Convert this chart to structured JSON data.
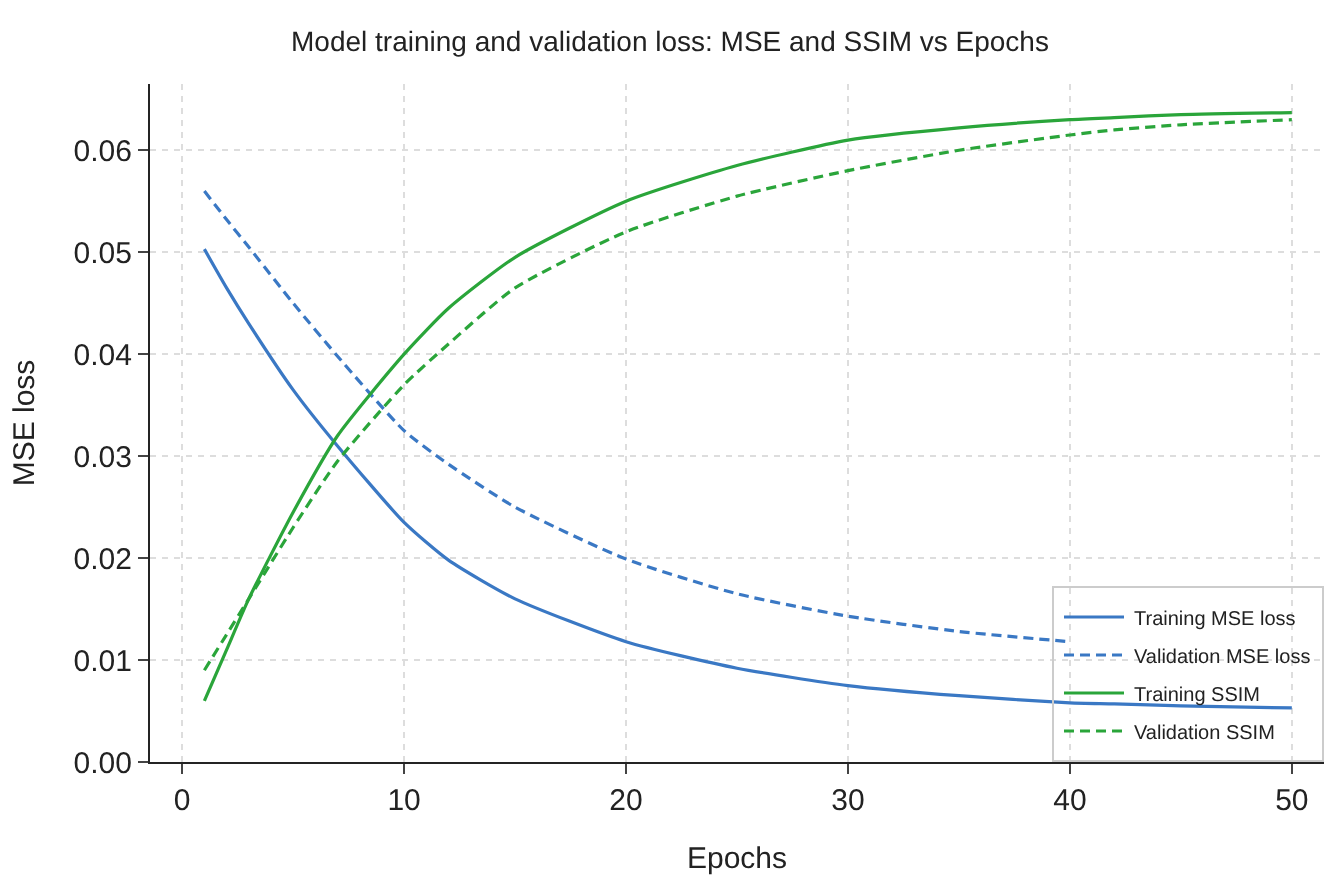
{
  "chart_data": {
    "type": "line",
    "title": "Model training and validation loss: MSE and SSIM vs Epochs",
    "xlabel": "Epochs",
    "ylabel": "MSE loss",
    "x": [
      1,
      2,
      3,
      5,
      7,
      10,
      12,
      15,
      20,
      25,
      30,
      35,
      40,
      42,
      45,
      50
    ],
    "series": [
      {
        "name": "Training MSE loss",
        "color": "#3a78c4",
        "line_style": "solid",
        "values": [
          0.0503,
          0.0465,
          0.043,
          0.0365,
          0.031,
          0.0235,
          0.0198,
          0.016,
          0.0118,
          0.0092,
          0.0075,
          0.0065,
          0.0058,
          0.0057,
          0.0055,
          0.0053
        ]
      },
      {
        "name": "Validation MSE loss",
        "color": "#3a78c4",
        "line_style": "dashed",
        "values": [
          0.056,
          0.0532,
          0.0505,
          0.045,
          0.0398,
          0.0325,
          0.0292,
          0.025,
          0.0199,
          0.0165,
          0.0143,
          0.0128,
          0.0118,
          null,
          null,
          null
        ]
      },
      {
        "name": "Training SSIM",
        "color": "#2aa53a",
        "line_style": "solid",
        "values": [
          0.006,
          0.011,
          0.016,
          0.0245,
          0.032,
          0.04,
          0.0445,
          0.0495,
          0.055,
          0.0585,
          0.061,
          0.0622,
          0.063,
          0.0632,
          0.0635,
          0.0637
        ]
      },
      {
        "name": "Validation SSIM",
        "color": "#2aa53a",
        "line_style": "dashed",
        "values": [
          0.009,
          0.0125,
          0.016,
          0.023,
          0.0295,
          0.037,
          0.041,
          0.0465,
          0.052,
          0.0555,
          0.058,
          0.06,
          0.0615,
          0.062,
          0.0625,
          0.063
        ]
      }
    ],
    "xlim": [
      -1.45,
      51.45
    ],
    "xticks": [
      0,
      10,
      20,
      30,
      40,
      50
    ],
    "ylim": [
      0,
      0.0665
    ],
    "yticks": [
      {
        "value": 0,
        "label": "0.00"
      },
      {
        "value": 0.01,
        "label": "0.01"
      },
      {
        "value": 0.02,
        "label": "0.02"
      },
      {
        "value": 0.03,
        "label": "0.03"
      },
      {
        "value": 0.04,
        "label": "0.04"
      },
      {
        "value": 0.05,
        "label": "0.05"
      },
      {
        "value": 0.06,
        "label": "0.06"
      }
    ],
    "grid": true,
    "legend": "bottom right",
    "marker": "none"
  }
}
